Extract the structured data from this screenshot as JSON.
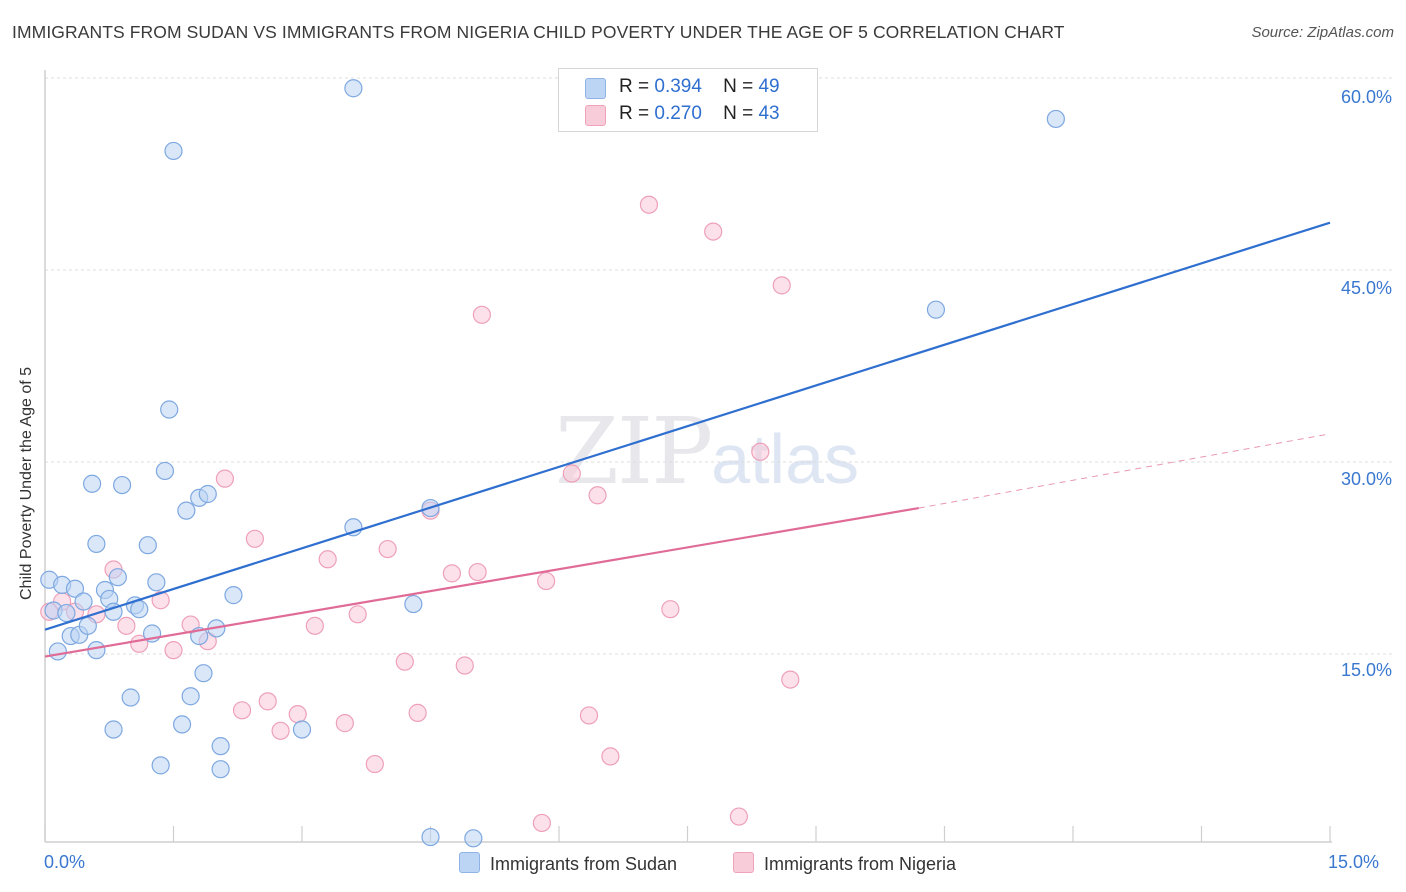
{
  "title": "IMMIGRANTS FROM SUDAN VS IMMIGRANTS FROM NIGERIA CHILD POVERTY UNDER THE AGE OF 5 CORRELATION CHART",
  "source": "Source: ZipAtlas.com",
  "watermark": {
    "zip": "ZIP",
    "atlas": "atlas"
  },
  "legend": {
    "sudan": {
      "r_label": "R =",
      "r": "0.394",
      "n_label": "N =",
      "n": "49",
      "color": "#a9c8f0"
    },
    "nigeria": {
      "r_label": "R =",
      "r": "0.270",
      "n_label": "N =",
      "n": "43",
      "color": "#f6b8cb"
    }
  },
  "bottom_legend": {
    "sudan": "Immigrants from Sudan",
    "nigeria": "Immigrants from Nigeria"
  },
  "x_ticks": {
    "min": "0.0%",
    "max": "15.0%"
  },
  "y_ticks": [
    "60.0%",
    "45.0%",
    "30.0%",
    "15.0%"
  ],
  "colors": {
    "sudan_line": "#2f6fcf",
    "nigeria_line": "#e06b97",
    "sudan_fill": "#b9d3f4",
    "nigeria_fill": "#f9c9d8",
    "tick": "#3a78d0"
  },
  "chart_data": {
    "type": "scatter",
    "title": "IMMIGRANTS FROM SUDAN VS IMMIGRANTS FROM NIGERIA CHILD POVERTY UNDER THE AGE OF 5 CORRELATION CHART",
    "xlabel": "",
    "ylabel": "Child Poverty Under the Age of 5",
    "xlim": [
      0,
      15
    ],
    "ylim": [
      0,
      60
    ],
    "grid": true,
    "legend_position": "top-center",
    "series": [
      {
        "name": "Immigrants from Sudan",
        "color": "#a9c8f0",
        "points": [
          [
            0.05,
            20.8
          ],
          [
            0.1,
            18.4
          ],
          [
            0.15,
            15.2
          ],
          [
            0.2,
            20.4
          ],
          [
            0.25,
            18.2
          ],
          [
            0.3,
            16.4
          ],
          [
            0.35,
            20.1
          ],
          [
            0.4,
            16.5
          ],
          [
            0.45,
            19.1
          ],
          [
            0.5,
            17.2
          ],
          [
            0.6,
            15.3
          ],
          [
            0.6,
            23.6
          ],
          [
            0.55,
            28.3
          ],
          [
            0.7,
            20.0
          ],
          [
            0.75,
            19.3
          ],
          [
            0.8,
            18.3
          ],
          [
            0.85,
            21.0
          ],
          [
            0.9,
            28.2
          ],
          [
            1.0,
            11.6
          ],
          [
            1.05,
            18.8
          ],
          [
            1.1,
            18.5
          ],
          [
            0.8,
            9.1
          ],
          [
            1.2,
            23.5
          ],
          [
            1.25,
            16.6
          ],
          [
            1.3,
            20.6
          ],
          [
            1.35,
            6.3
          ],
          [
            1.4,
            29.3
          ],
          [
            1.45,
            34.1
          ],
          [
            1.5,
            54.3
          ],
          [
            1.6,
            9.5
          ],
          [
            1.65,
            26.2
          ],
          [
            1.7,
            11.7
          ],
          [
            1.8,
            27.2
          ],
          [
            1.8,
            16.4
          ],
          [
            1.85,
            13.5
          ],
          [
            1.9,
            27.5
          ],
          [
            2.0,
            17.0
          ],
          [
            2.05,
            7.8
          ],
          [
            2.05,
            6.0
          ],
          [
            2.2,
            19.6
          ],
          [
            3.0,
            9.1
          ],
          [
            3.6,
            24.9
          ],
          [
            3.6,
            59.2
          ],
          [
            4.3,
            18.9
          ],
          [
            4.5,
            26.4
          ],
          [
            4.5,
            0.7
          ],
          [
            5.0,
            0.6
          ],
          [
            10.4,
            41.9
          ],
          [
            11.8,
            56.8
          ]
        ]
      },
      {
        "name": "Immigrants from Nigeria",
        "color": "#f6b8cb",
        "points": [
          [
            0.05,
            18.3
          ],
          [
            0.2,
            19.1
          ],
          [
            0.35,
            18.3
          ],
          [
            0.6,
            18.1
          ],
          [
            0.8,
            21.6
          ],
          [
            0.95,
            17.2
          ],
          [
            1.1,
            15.8
          ],
          [
            1.35,
            19.2
          ],
          [
            1.5,
            15.3
          ],
          [
            1.7,
            17.3
          ],
          [
            1.9,
            16.0
          ],
          [
            2.1,
            28.7
          ],
          [
            2.3,
            10.6
          ],
          [
            2.45,
            24.0
          ],
          [
            2.6,
            11.3
          ],
          [
            2.75,
            9.0
          ],
          [
            2.95,
            10.3
          ],
          [
            3.15,
            17.2
          ],
          [
            3.3,
            22.4
          ],
          [
            3.5,
            9.6
          ],
          [
            3.65,
            18.1
          ],
          [
            3.85,
            6.4
          ],
          [
            4.0,
            23.2
          ],
          [
            4.2,
            14.4
          ],
          [
            4.35,
            10.4
          ],
          [
            4.5,
            26.2
          ],
          [
            4.75,
            21.3
          ],
          [
            4.9,
            14.1
          ],
          [
            5.05,
            21.4
          ],
          [
            5.1,
            41.5
          ],
          [
            5.8,
            1.8
          ],
          [
            5.85,
            20.7
          ],
          [
            6.15,
            29.1
          ],
          [
            6.35,
            10.2
          ],
          [
            6.45,
            27.4
          ],
          [
            6.6,
            7.0
          ],
          [
            7.05,
            50.1
          ],
          [
            7.3,
            18.5
          ],
          [
            7.8,
            48.0
          ],
          [
            8.1,
            2.3
          ],
          [
            8.35,
            30.8
          ],
          [
            8.6,
            43.8
          ],
          [
            8.7,
            13.0
          ]
        ]
      }
    ],
    "trend_lines": [
      {
        "name": "Immigrants from Sudan",
        "x": [
          0,
          15
        ],
        "y": [
          16.9,
          48.7
        ],
        "style": "solid"
      },
      {
        "name": "Immigrants from Nigeria",
        "x": [
          0,
          10.2
        ],
        "y": [
          14.8,
          26.4
        ],
        "style": "solid"
      },
      {
        "name": "Immigrants from Nigeria",
        "x": [
          10.2,
          15
        ],
        "y": [
          26.4,
          32.2
        ],
        "style": "dashed"
      }
    ]
  }
}
